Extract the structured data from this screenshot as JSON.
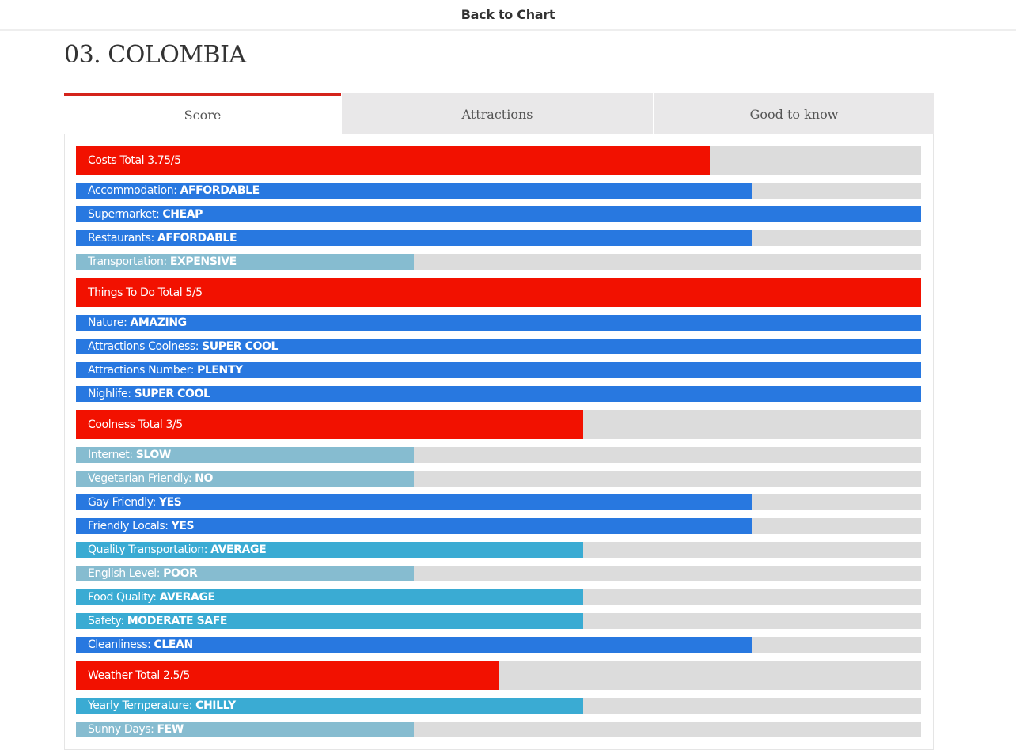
{
  "header": {
    "back_label": "Back to Chart"
  },
  "page_title": "03. COLOMBIA",
  "tabs": [
    {
      "label": "Score",
      "active": true
    },
    {
      "label": "Attractions",
      "active": false
    },
    {
      "label": "Good to know",
      "active": false
    }
  ],
  "colors": {
    "total": "#f21100",
    "high": "#2878e0",
    "medium": "#3aabd3",
    "low": "#86bcd0",
    "track": "#dcdcdc",
    "tab_accent": "#d4231b"
  },
  "rows": [
    {
      "type": "total",
      "label": "Costs Total 3.75/5",
      "level": 0.75
    },
    {
      "type": "sub",
      "label": "Accommodation:",
      "value": "AFFORDABLE",
      "level": 0.8,
      "color": "high"
    },
    {
      "type": "sub",
      "label": "Supermarket:",
      "value": "CHEAP",
      "level": 1.0,
      "color": "high"
    },
    {
      "type": "sub",
      "label": "Restaurants:",
      "value": "AFFORDABLE",
      "level": 0.8,
      "color": "high"
    },
    {
      "type": "sub",
      "label": "Transportation:",
      "value": "EXPENSIVE",
      "level": 0.4,
      "color": "low"
    },
    {
      "type": "total",
      "label": "Things To Do Total 5/5",
      "level": 1.0
    },
    {
      "type": "sub",
      "label": "Nature:",
      "value": "AMAZING",
      "level": 1.0,
      "color": "high"
    },
    {
      "type": "sub",
      "label": "Attractions Coolness:",
      "value": "SUPER COOL",
      "level": 1.0,
      "color": "high"
    },
    {
      "type": "sub",
      "label": "Attractions Number:",
      "value": "PLENTY",
      "level": 1.0,
      "color": "high"
    },
    {
      "type": "sub",
      "label": "Nighlife:",
      "value": "SUPER COOL",
      "level": 1.0,
      "color": "high"
    },
    {
      "type": "total",
      "label": "Coolness Total 3/5",
      "level": 0.6
    },
    {
      "type": "sub",
      "label": "Internet:",
      "value": "SLOW",
      "level": 0.4,
      "color": "low"
    },
    {
      "type": "sub",
      "label": "Vegetarian Friendly:",
      "value": "NO",
      "level": 0.4,
      "color": "low"
    },
    {
      "type": "sub",
      "label": "Gay Friendly:",
      "value": "YES",
      "level": 0.8,
      "color": "high"
    },
    {
      "type": "sub",
      "label": "Friendly Locals:",
      "value": "YES",
      "level": 0.8,
      "color": "high"
    },
    {
      "type": "sub",
      "label": "Quality Transportation:",
      "value": "AVERAGE",
      "level": 0.6,
      "color": "medium"
    },
    {
      "type": "sub",
      "label": "English Level:",
      "value": "POOR",
      "level": 0.4,
      "color": "low"
    },
    {
      "type": "sub",
      "label": "Food Quality:",
      "value": "AVERAGE",
      "level": 0.6,
      "color": "medium"
    },
    {
      "type": "sub",
      "label": "Safety:",
      "value": "MODERATE SAFE",
      "level": 0.6,
      "color": "medium"
    },
    {
      "type": "sub",
      "label": "Cleanliness:",
      "value": "CLEAN",
      "level": 0.8,
      "color": "high"
    },
    {
      "type": "total",
      "label": "Weather Total 2.5/5",
      "level": 0.5
    },
    {
      "type": "sub",
      "label": "Yearly Temperature:",
      "value": "CHILLY",
      "level": 0.6,
      "color": "medium"
    },
    {
      "type": "sub",
      "label": "Sunny Days:",
      "value": "FEW",
      "level": 0.4,
      "color": "low"
    }
  ]
}
